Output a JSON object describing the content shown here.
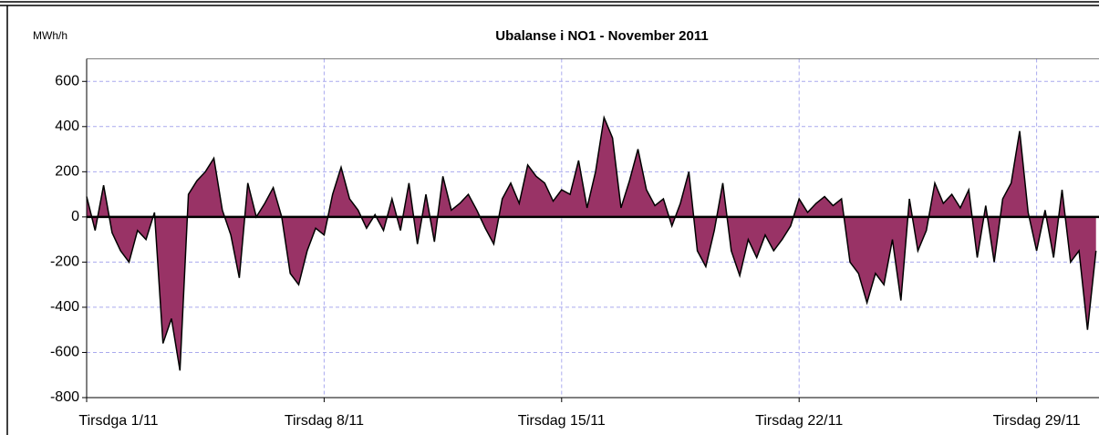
{
  "chart_data": {
    "type": "area",
    "title": "Ubalanse i NO1 -  November 2011",
    "y_label": "MWh/h",
    "x": [
      0,
      6,
      12,
      18,
      24,
      30,
      36,
      42,
      48,
      54,
      60,
      66,
      72,
      78,
      84,
      90,
      96,
      102,
      108,
      114,
      120,
      126,
      132,
      138,
      144,
      150,
      156,
      162,
      168,
      174,
      180,
      186,
      192,
      198,
      204,
      210,
      216,
      222,
      228,
      234,
      240,
      246,
      252,
      258,
      264,
      270,
      276,
      282,
      288,
      294,
      300,
      306,
      312,
      318,
      324,
      330,
      336,
      342,
      348,
      354,
      360,
      366,
      372,
      378,
      384,
      390,
      396,
      402,
      408,
      414,
      420,
      426,
      432,
      438,
      444,
      450,
      456,
      462,
      468,
      474,
      480,
      486,
      492,
      498,
      504,
      510,
      516,
      522,
      528,
      534,
      540,
      546,
      552,
      558,
      564,
      570,
      576,
      582,
      588,
      594,
      600,
      606,
      612,
      618,
      624,
      630,
      636,
      642,
      648,
      654,
      660,
      666,
      672,
      678,
      684,
      690,
      696,
      702,
      708,
      714
    ],
    "series": [
      {
        "name": "Ubalanse",
        "color": "#993366",
        "line_color": "#000000",
        "values": [
          90,
          -60,
          140,
          -70,
          -150,
          -200,
          -60,
          -100,
          20,
          -560,
          -450,
          -680,
          100,
          160,
          200,
          260,
          30,
          -80,
          -270,
          150,
          0,
          60,
          130,
          0,
          -250,
          -300,
          -150,
          -50,
          -80,
          100,
          220,
          80,
          30,
          -50,
          10,
          -60,
          80,
          -60,
          150,
          -120,
          100,
          -110,
          180,
          30,
          60,
          100,
          30,
          -50,
          -120,
          80,
          150,
          60,
          230,
          180,
          150,
          70,
          120,
          100,
          250,
          40,
          200,
          440,
          350,
          40,
          160,
          300,
          120,
          50,
          80,
          -40,
          60,
          200,
          -150,
          -220,
          -60,
          150,
          -150,
          -260,
          -100,
          -180,
          -80,
          -150,
          -100,
          -40,
          80,
          20,
          60,
          90,
          50,
          80,
          -200,
          -250,
          -380,
          -250,
          -300,
          -100,
          -370,
          80,
          -150,
          -60,
          150,
          60,
          100,
          40,
          120,
          -180,
          50,
          -200,
          80,
          150,
          380,
          20,
          -150,
          30,
          -180,
          120,
          -200,
          -150,
          -500,
          -150
        ]
      }
    ],
    "xlim": [
      0,
      720
    ],
    "xticks": [
      {
        "value": 0,
        "label": "Tirsdga 1/11"
      },
      {
        "value": 168,
        "label": "Tirsdag 8/11"
      },
      {
        "value": 336,
        "label": "Tirsdag 15/11"
      },
      {
        "value": 504,
        "label": "Tirsdag 22/11"
      },
      {
        "value": 672,
        "label": "Tirsdag 29/11"
      }
    ],
    "ylim": [
      -800,
      700
    ],
    "yticks": [
      -800,
      -600,
      -400,
      -200,
      0,
      200,
      400,
      600
    ],
    "grid": true
  }
}
